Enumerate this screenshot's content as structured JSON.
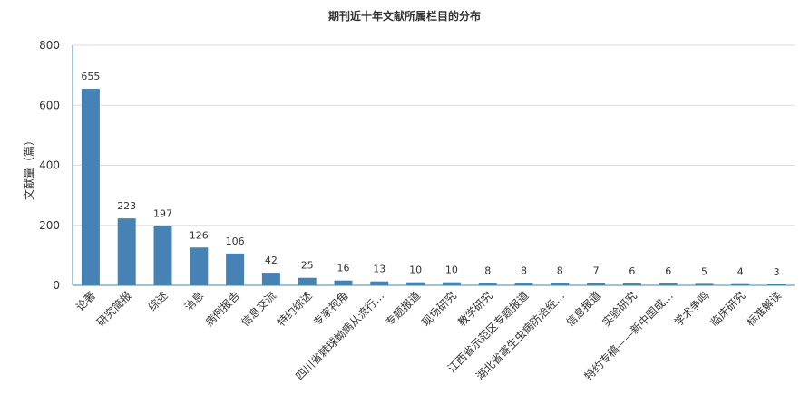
{
  "chart_data": {
    "type": "bar",
    "title": "期刊近十年文献所属栏目的分布",
    "xlabel": "",
    "ylabel": "文献量（篇）",
    "ylim": [
      0,
      800
    ],
    "yticks": [
      0,
      200,
      400,
      600,
      800
    ],
    "grid": true,
    "legend": "none",
    "bar_color": "#4682b4",
    "categories": [
      "论著",
      "研究简报",
      "综述",
      "消息",
      "病例报告",
      "信息交流",
      "特约综述",
      "专家视角",
      "四川省棘球蚴病从流行…",
      "专题报道",
      "现场研究",
      "教学研究",
      "江西省示范区专题报道",
      "湖北省寄生虫病防治经…",
      "信息报道",
      "实验研究",
      "特约专稿——新中国成…",
      "学术争鸣",
      "临床研究",
      "标准解读"
    ],
    "values": [
      655,
      223,
      197,
      126,
      106,
      42,
      25,
      16,
      13,
      10,
      10,
      8,
      8,
      8,
      7,
      6,
      6,
      5,
      4,
      3
    ]
  }
}
